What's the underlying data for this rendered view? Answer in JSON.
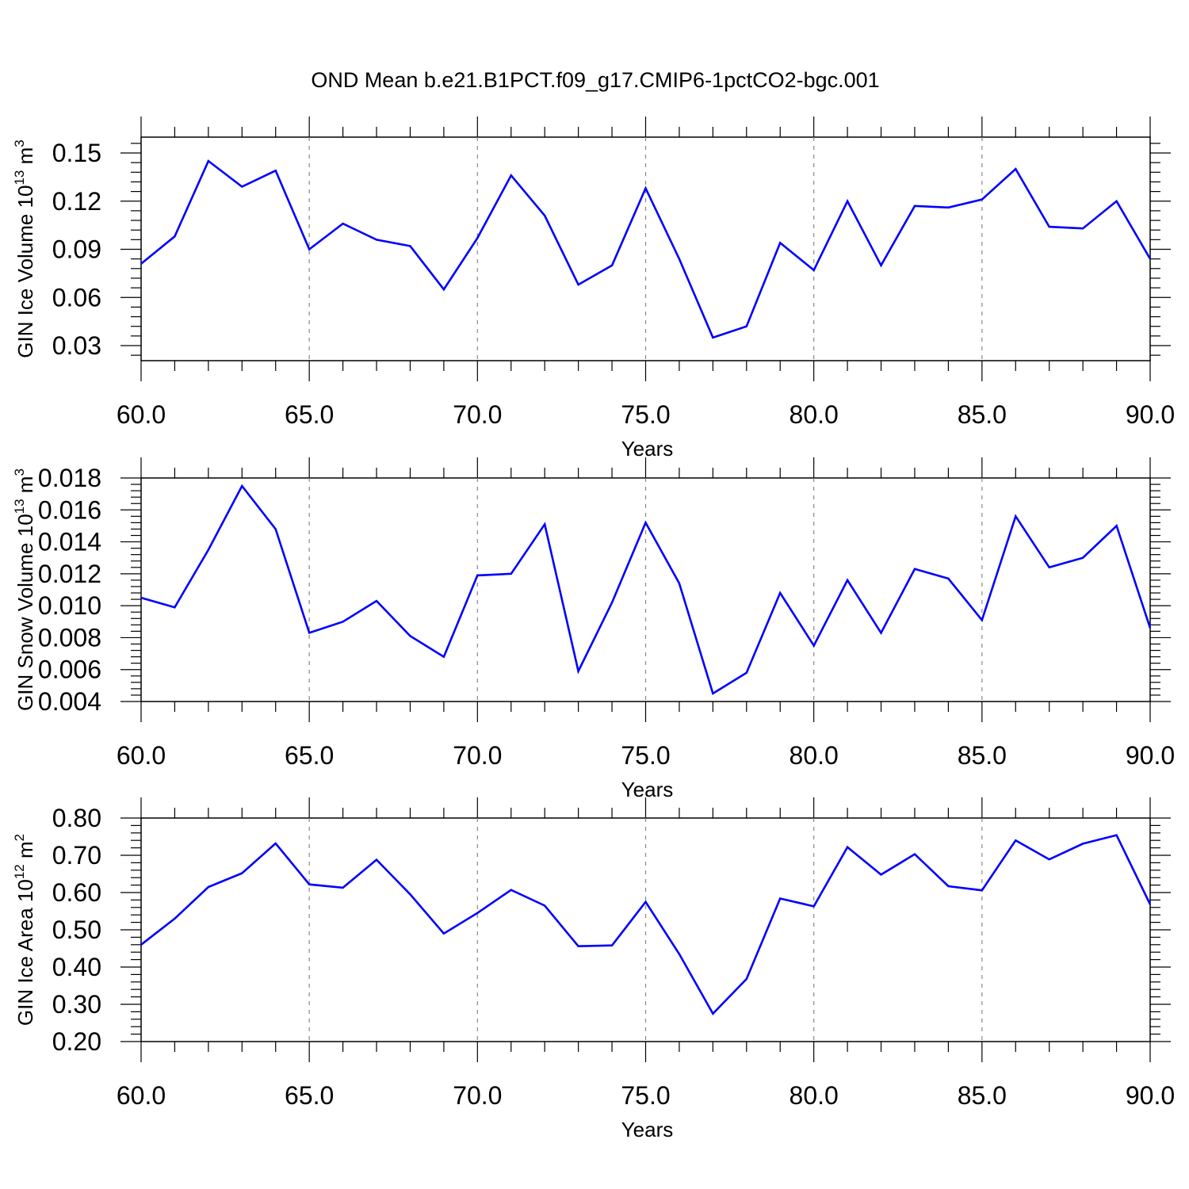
{
  "title": "OND Mean b.e21.B1PCT.f09_g17.CMIP6-1pctCO2-bgc.001",
  "chart_data": [
    {
      "type": "line",
      "ylabel": "GIN Ice Volume 10^13 m^3",
      "ylabel_parts": {
        "base": "GIN Ice Volume 10",
        "exp": "13",
        "unit": " m",
        "unit_exp": "3"
      },
      "xlabel": "Years",
      "x_ticks": [
        "60.0",
        "65.0",
        "70.0",
        "75.0",
        "80.0",
        "85.0",
        "90.0"
      ],
      "y_ticks": [
        "0.03",
        "0.06",
        "0.09",
        "0.12",
        "0.15"
      ],
      "xlim": [
        60,
        90
      ],
      "ylim": [
        0.02,
        0.16
      ],
      "grid": "vertical dashed at major x ticks",
      "color": "#0000ff",
      "x": [
        60,
        61,
        62,
        63,
        64,
        65,
        66,
        67,
        68,
        69,
        70,
        71,
        72,
        73,
        74,
        75,
        76,
        77,
        78,
        79,
        80,
        81,
        82,
        83,
        84,
        85,
        86,
        87,
        88,
        89,
        90
      ],
      "values": [
        0.081,
        0.098,
        0.145,
        0.129,
        0.139,
        0.09,
        0.106,
        0.096,
        0.092,
        0.065,
        0.097,
        0.136,
        0.111,
        0.068,
        0.08,
        0.128,
        0.084,
        0.035,
        0.042,
        0.094,
        0.077,
        0.12,
        0.08,
        0.117,
        0.116,
        0.121,
        0.14,
        0.104,
        0.103,
        0.12,
        0.084
      ]
    },
    {
      "type": "line",
      "ylabel": "GIN Snow Volume 10^13 m^3",
      "ylabel_parts": {
        "base": "GIN Snow Volume 10",
        "exp": "13",
        "unit": " m",
        "unit_exp": "3"
      },
      "xlabel": "Years",
      "x_ticks": [
        "60.0",
        "65.0",
        "70.0",
        "75.0",
        "80.0",
        "85.0",
        "90.0"
      ],
      "y_ticks": [
        "0.004",
        "0.006",
        "0.008",
        "0.010",
        "0.012",
        "0.014",
        "0.016",
        "0.018"
      ],
      "xlim": [
        60,
        90
      ],
      "ylim": [
        0.004,
        0.018
      ],
      "grid": "vertical dashed at major x ticks",
      "color": "#0000ff",
      "x": [
        60,
        61,
        62,
        63,
        64,
        65,
        66,
        67,
        68,
        69,
        70,
        71,
        72,
        73,
        74,
        75,
        76,
        77,
        78,
        79,
        80,
        81,
        82,
        83,
        84,
        85,
        86,
        87,
        88,
        89,
        90
      ],
      "values": [
        0.0105,
        0.0099,
        0.0135,
        0.0175,
        0.0148,
        0.0083,
        0.009,
        0.0103,
        0.0081,
        0.0068,
        0.0119,
        0.012,
        0.0151,
        0.0059,
        0.0102,
        0.0152,
        0.0114,
        0.0045,
        0.0058,
        0.0108,
        0.0075,
        0.0116,
        0.0083,
        0.0123,
        0.0117,
        0.0091,
        0.0156,
        0.0124,
        0.013,
        0.015,
        0.0086
      ]
    },
    {
      "type": "line",
      "ylabel": "GIN Ice Area 10^12 m^2",
      "ylabel_parts": {
        "base": "GIN Ice Area 10",
        "exp": "12",
        "unit": " m",
        "unit_exp": "2"
      },
      "xlabel": "Years",
      "x_ticks": [
        "60.0",
        "65.0",
        "70.0",
        "75.0",
        "80.0",
        "85.0",
        "90.0"
      ],
      "y_ticks": [
        "0.20",
        "0.30",
        "0.40",
        "0.50",
        "0.60",
        "0.70",
        "0.80"
      ],
      "xlim": [
        60,
        90
      ],
      "ylim": [
        0.2,
        0.8
      ],
      "grid": "vertical dashed at major x ticks",
      "color": "#0000ff",
      "x": [
        60,
        61,
        62,
        63,
        64,
        65,
        66,
        67,
        68,
        69,
        70,
        71,
        72,
        73,
        74,
        75,
        76,
        77,
        78,
        79,
        80,
        81,
        82,
        83,
        84,
        85,
        86,
        87,
        88,
        89,
        90
      ],
      "values": [
        0.46,
        0.53,
        0.615,
        0.652,
        0.732,
        0.622,
        0.613,
        0.688,
        0.595,
        0.49,
        0.545,
        0.607,
        0.565,
        0.456,
        0.458,
        0.575,
        0.435,
        0.275,
        0.368,
        0.584,
        0.563,
        0.722,
        0.648,
        0.703,
        0.617,
        0.606,
        0.74,
        0.689,
        0.731,
        0.754,
        0.568
      ]
    }
  ]
}
